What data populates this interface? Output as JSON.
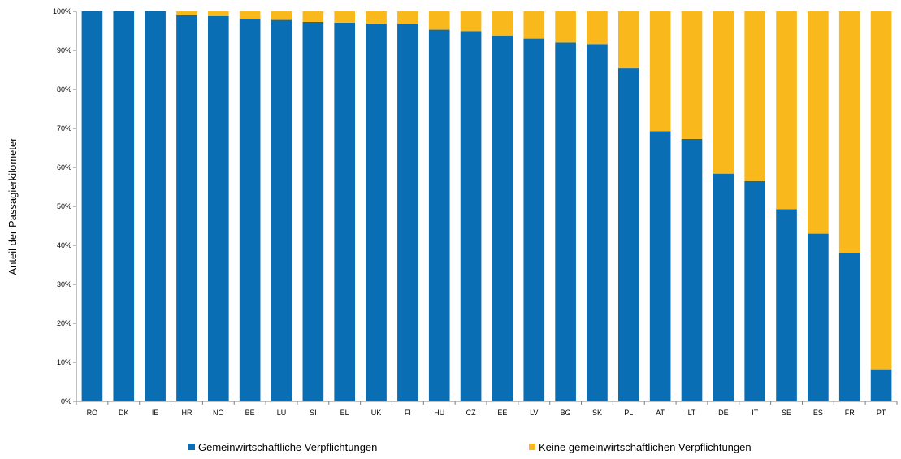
{
  "chart_data": {
    "type": "bar",
    "stacked": true,
    "categories": [
      "RO",
      "DK",
      "IE",
      "HR",
      "NO",
      "BE",
      "LU",
      "SI",
      "EL",
      "UK",
      "FI",
      "HU",
      "CZ",
      "EE",
      "LV",
      "BG",
      "SK",
      "PL",
      "AT",
      "LT",
      "DE",
      "IT",
      "SE",
      "ES",
      "FR",
      "PT"
    ],
    "series": [
      {
        "name": "Gemeinwirtschaftliche Verpflichtungen",
        "color": "#0A6EB4",
        "values": [
          100,
          100,
          100,
          99,
          98.8,
          98,
          97.8,
          97.3,
          97.1,
          96.9,
          96.8,
          95.3,
          94.9,
          93.8,
          93,
          92,
          91.6,
          85.4,
          69.3,
          67.3,
          58.4,
          56.5,
          49.3,
          43,
          38,
          8.2
        ]
      },
      {
        "name": "Keine gemeinwirtschaftlichen Verpflichtungen",
        "color": "#F9B91C",
        "values": [
          0,
          0,
          0,
          1,
          1.2,
          2,
          2.2,
          2.7,
          2.9,
          3.1,
          3.2,
          4.7,
          5.1,
          6.2,
          7,
          8,
          8.4,
          14.6,
          30.7,
          32.7,
          41.6,
          43.5,
          50.7,
          57,
          62,
          91.8
        ]
      }
    ],
    "yticks": [
      "0%",
      "10%",
      "20%",
      "30%",
      "40%",
      "50%",
      "60%",
      "70%",
      "80%",
      "90%",
      "100%"
    ],
    "ylim": [
      0,
      100
    ],
    "ylabel": "Anteil der Passagierkilometer",
    "xlabel": "",
    "title": "",
    "grid": false,
    "legend_position": "bottom"
  }
}
